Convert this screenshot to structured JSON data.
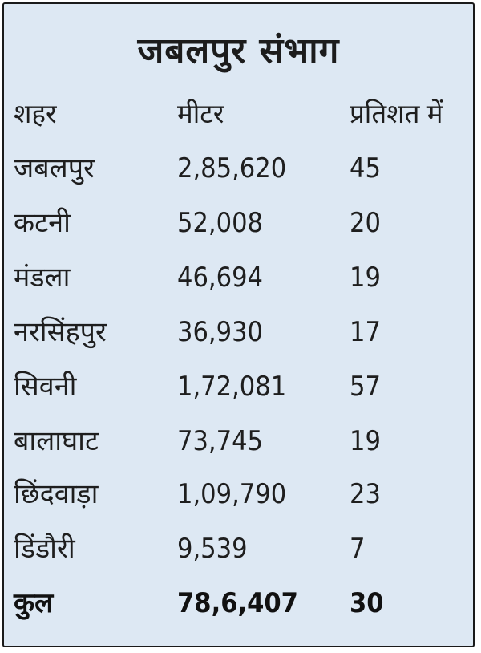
{
  "title": "जबलपुर संभाग",
  "columns": [
    "शहर",
    "मीटर",
    "प्रतिशत में"
  ],
  "rows": [
    {
      "city": "जबलपुर",
      "meters": "2,85,620",
      "percent": "45"
    },
    {
      "city": "कटनी",
      "meters": "52,008",
      "percent": "20"
    },
    {
      "city": "मंडला",
      "meters": "46,694",
      "percent": "19"
    },
    {
      "city": "नरसिंहपुर",
      "meters": "36,930",
      "percent": "17"
    },
    {
      "city": "सिवनी",
      "meters": "1,72,081",
      "percent": "57"
    },
    {
      "city": "बालाघाट",
      "meters": "73,745",
      "percent": "19"
    },
    {
      "city": "छिंदवाड़ा",
      "meters": "1,09,790",
      "percent": "23"
    },
    {
      "city": "डिंडौरी",
      "meters": "9,539",
      "percent": "7"
    }
  ],
  "total": {
    "city": "कुल",
    "meters": "78,6,407",
    "percent": "30"
  },
  "colors": {
    "background": "#dde8f3",
    "border": "#1a1a1a",
    "text": "#1e1e1e"
  }
}
